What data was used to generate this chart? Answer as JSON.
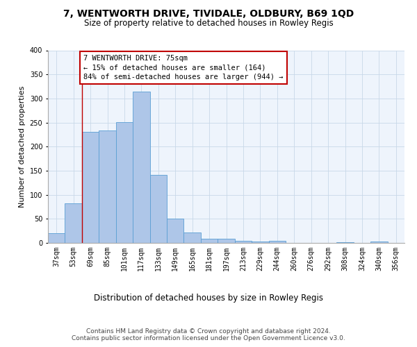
{
  "title": "7, WENTWORTH DRIVE, TIVIDALE, OLDBURY, B69 1QD",
  "subtitle": "Size of property relative to detached houses in Rowley Regis",
  "xlabel_bottom": "Distribution of detached houses by size in Rowley Regis",
  "ylabel": "Number of detached properties",
  "categories": [
    "37sqm",
    "53sqm",
    "69sqm",
    "85sqm",
    "101sqm",
    "117sqm",
    "133sqm",
    "149sqm",
    "165sqm",
    "181sqm",
    "197sqm",
    "213sqm",
    "229sqm",
    "244sqm",
    "260sqm",
    "276sqm",
    "292sqm",
    "308sqm",
    "324sqm",
    "340sqm",
    "356sqm"
  ],
  "values": [
    20,
    82,
    230,
    233,
    251,
    314,
    141,
    50,
    22,
    9,
    9,
    5,
    3,
    4,
    0,
    0,
    0,
    1,
    0,
    3,
    0
  ],
  "bar_color": "#aec6e8",
  "bar_edge_color": "#5a9fd4",
  "vline_color": "#c00000",
  "annotation_text": "7 WENTWORTH DRIVE: 75sqm\n← 15% of detached houses are smaller (164)\n84% of semi-detached houses are larger (944) →",
  "annotation_box_color": "#c00000",
  "ylim": [
    0,
    400
  ],
  "yticks": [
    0,
    50,
    100,
    150,
    200,
    250,
    300,
    350,
    400
  ],
  "footnote": "Contains HM Land Registry data © Crown copyright and database right 2024.\nContains public sector information licensed under the Open Government Licence v3.0.",
  "title_fontsize": 10,
  "subtitle_fontsize": 8.5,
  "ylabel_fontsize": 8,
  "xlabel_fontsize": 8.5,
  "tick_fontsize": 7,
  "annotation_fontsize": 7.5,
  "footnote_fontsize": 6.5
}
